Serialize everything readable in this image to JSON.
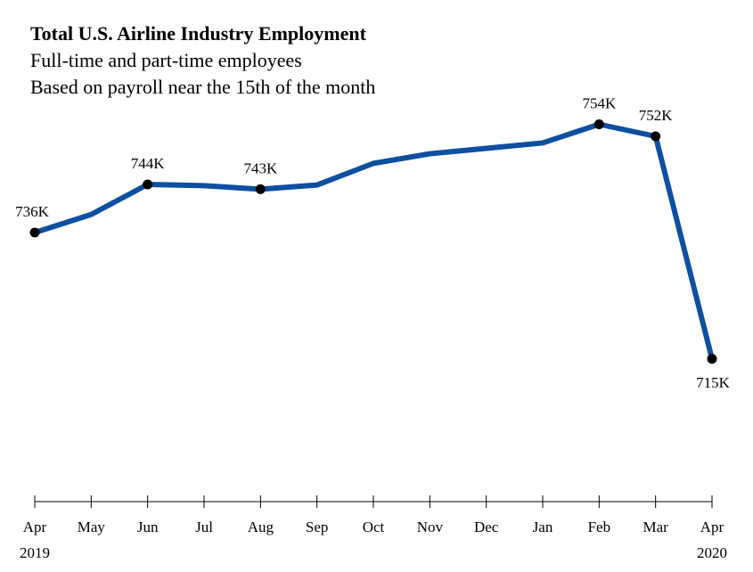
{
  "chart_data": {
    "type": "line",
    "title": "Total U.S. Airline Industry Employment",
    "subtitle_lines": [
      "Full-time and part-time employees",
      "Based on payroll near the 15th of the month"
    ],
    "categories": [
      "Apr",
      "May",
      "Jun",
      "Jul",
      "Aug",
      "Sep",
      "Oct",
      "Nov",
      "Dec",
      "Jan",
      "Feb",
      "Mar",
      "Apr"
    ],
    "year_labels": [
      {
        "index": 0,
        "text": "2019"
      },
      {
        "index": 12,
        "text": "2020"
      }
    ],
    "values": [
      736,
      739,
      744,
      743.8,
      743.2,
      743.9,
      747.5,
      749.1,
      750,
      750.9,
      754,
      752,
      715
    ],
    "unit": "thousand employees",
    "data_labels": [
      {
        "index": 0,
        "text": "736K"
      },
      {
        "index": 2,
        "text": "744K"
      },
      {
        "index": 4,
        "text": "743K"
      },
      {
        "index": 10,
        "text": "754K"
      },
      {
        "index": 11,
        "text": "752K"
      },
      {
        "index": 12,
        "text": "715K"
      }
    ],
    "ylim": [
      691.6,
      756
    ],
    "grid": false,
    "legend": "none",
    "line_color": "#0d4fa0",
    "marker_color": "#000000"
  }
}
